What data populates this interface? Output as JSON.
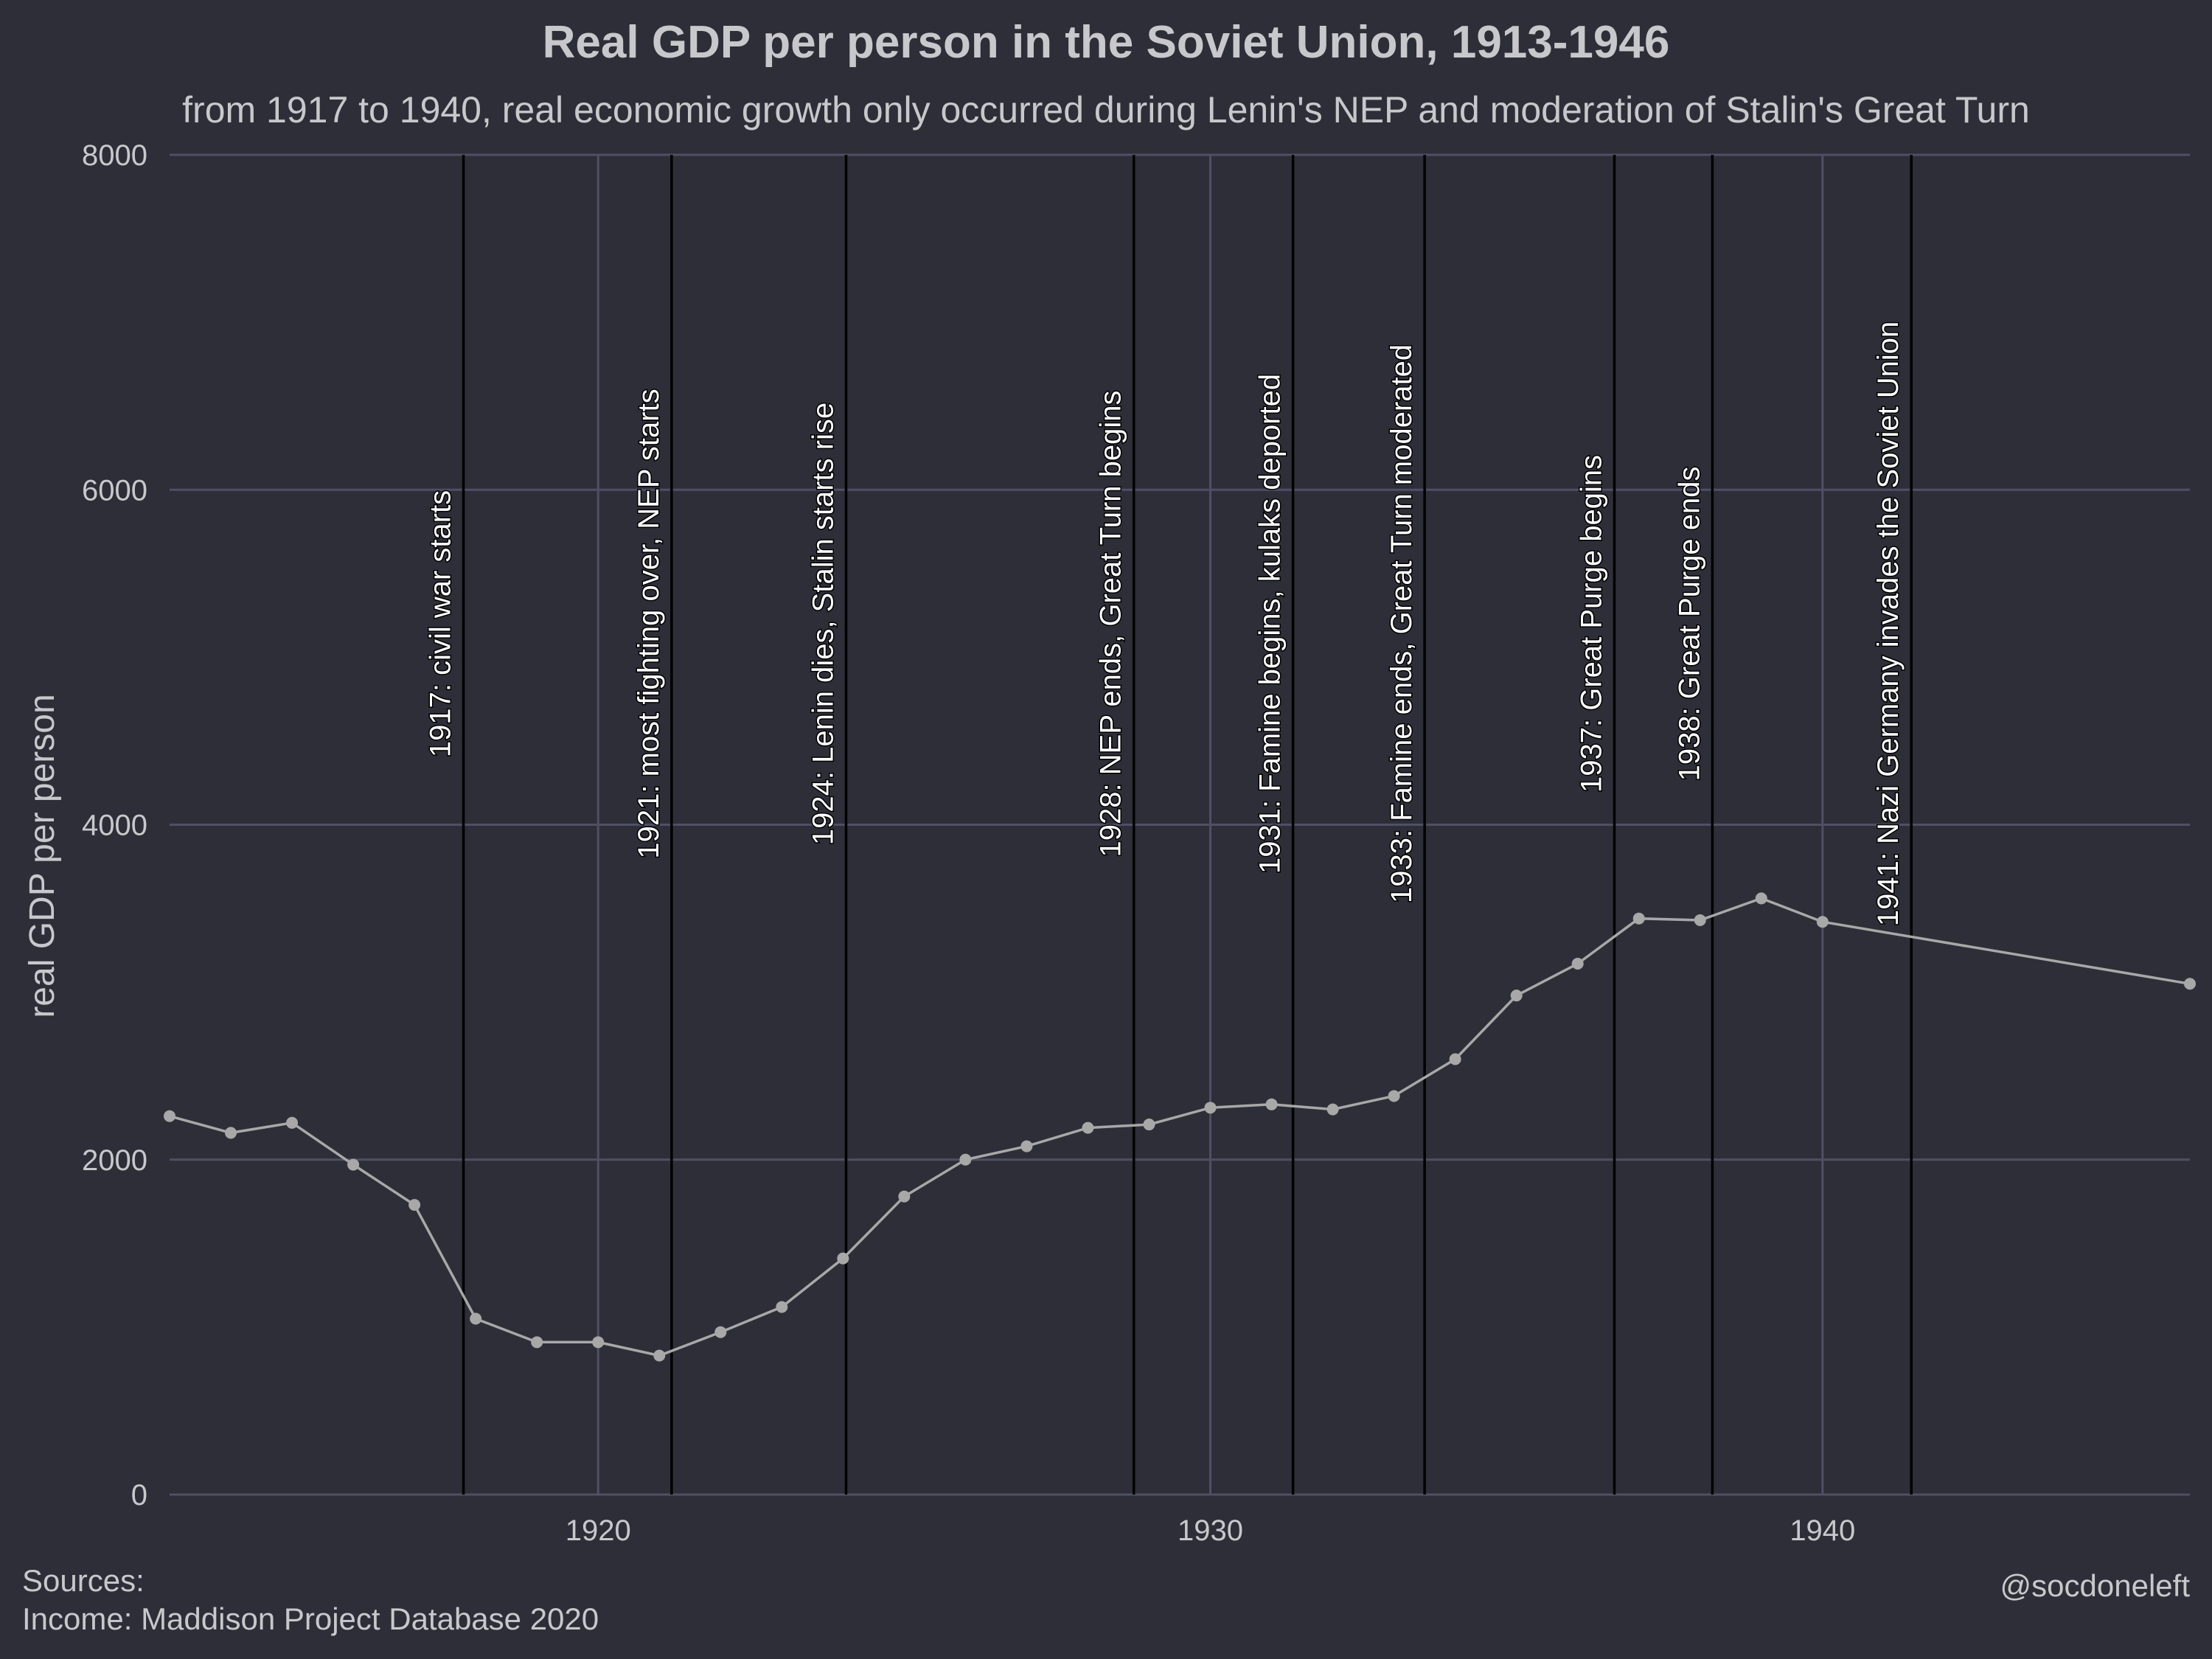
{
  "chart_data": {
    "type": "line",
    "title": "Real GDP per person in the Soviet Union, 1913-1946",
    "subtitle": "from 1917 to 1940, real economic growth only occurred during Lenin's NEP and moderation of Stalin's Great Turn",
    "xlabel": "",
    "ylabel": "real GDP per person",
    "xlim": [
      1913,
      1946
    ],
    "ylim": [
      0,
      8000
    ],
    "x_ticks": [
      1920,
      1930,
      1940
    ],
    "y_ticks": [
      0,
      2000,
      4000,
      6000,
      8000
    ],
    "grid": true,
    "series": [
      {
        "x": [
          1913,
          1914,
          1915,
          1916,
          1917,
          1918,
          1919,
          1920,
          1921,
          1922,
          1923,
          1924,
          1925,
          1926,
          1927,
          1928,
          1929,
          1930,
          1931,
          1932,
          1933,
          1934,
          1935,
          1936,
          1937,
          1938,
          1939,
          1940,
          1946
        ],
        "values": [
          2260,
          2160,
          2220,
          1970,
          1730,
          1050,
          910,
          910,
          830,
          970,
          1120,
          1410,
          1780,
          2000,
          2080,
          2190,
          2210,
          2310,
          2330,
          2300,
          2380,
          2600,
          2980,
          3170,
          3440,
          3430,
          3560,
          3420,
          3050
        ]
      }
    ],
    "event_lines": [
      {
        "x": 1917.8,
        "label": "1917: civil war starts"
      },
      {
        "x": 1921.2,
        "label": "1921: most fighting over, NEP starts"
      },
      {
        "x": 1924.05,
        "label": "1924: Lenin dies, Stalin starts rise"
      },
      {
        "x": 1928.75,
        "label": "1928: NEP ends, Great Turn begins"
      },
      {
        "x": 1931.35,
        "label": "1931: Famine begins, kulaks deported"
      },
      {
        "x": 1933.5,
        "label": "1933: Famine ends, Great Turn moderated"
      },
      {
        "x": 1936.6,
        "label": "1937: Great Purge begins"
      },
      {
        "x": 1938.2,
        "label": "1938: Great Purge ends"
      },
      {
        "x": 1941.45,
        "label": "1941: Nazi Germany invades the Soviet Union"
      }
    ],
    "colors": {
      "background": "#2e2e38",
      "grid": "#4f4f66",
      "line": "#a8a8a8",
      "event_line": "#000000",
      "text": "#c8c8cc"
    }
  },
  "caption": {
    "sources_line1": "Sources:",
    "sources_line2": "Income: Maddison Project Database 2020",
    "handle": "@socdoneleft"
  }
}
